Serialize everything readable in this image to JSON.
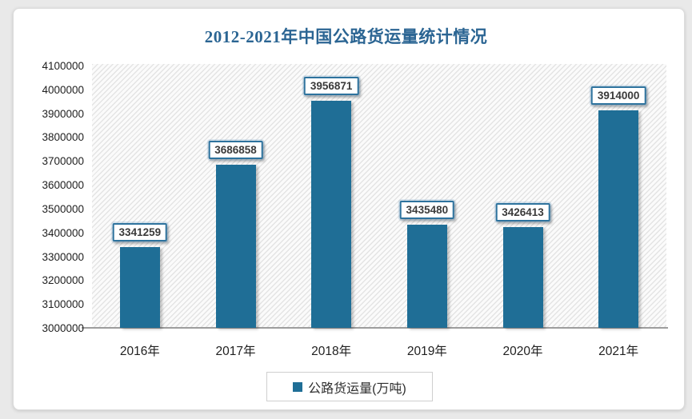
{
  "page": {
    "background_color": "#e9e9e9",
    "card_color": "#ffffff"
  },
  "title": {
    "text": "2012-2021年中国公路货运量统计情况",
    "color": "#2b6593"
  },
  "legend": {
    "label": "公路货运量(万吨)",
    "marker_color": "#1f6e96",
    "position": "bottom"
  },
  "chart_data": {
    "type": "bar",
    "title": "2012-2021年中国公路货运量统计情况",
    "categories": [
      "2016年",
      "2017年",
      "2018年",
      "2019年",
      "2020年",
      "2021年"
    ],
    "series": [
      {
        "name": "公路货运量(万吨)",
        "values": [
          3341259,
          3686858,
          3956871,
          3435480,
          3426413,
          3914000
        ]
      }
    ],
    "data_labels": [
      3341259,
      3686858,
      3956871,
      3435480,
      3426413,
      3914000
    ],
    "xlabel": "",
    "ylabel": "",
    "ylim": [
      3000000,
      4100000
    ],
    "ytick_step": 100000,
    "ytick_labels": [
      "4100000",
      "4000000",
      "3900000",
      "3800000",
      "3700000",
      "3600000",
      "3500000",
      "3400000",
      "3300000",
      "3200000",
      "3100000",
      "3000000"
    ],
    "grid": false,
    "bar_color": "#1f6e96",
    "plot_hatch": "diagonal",
    "legend_position": "bottom"
  }
}
